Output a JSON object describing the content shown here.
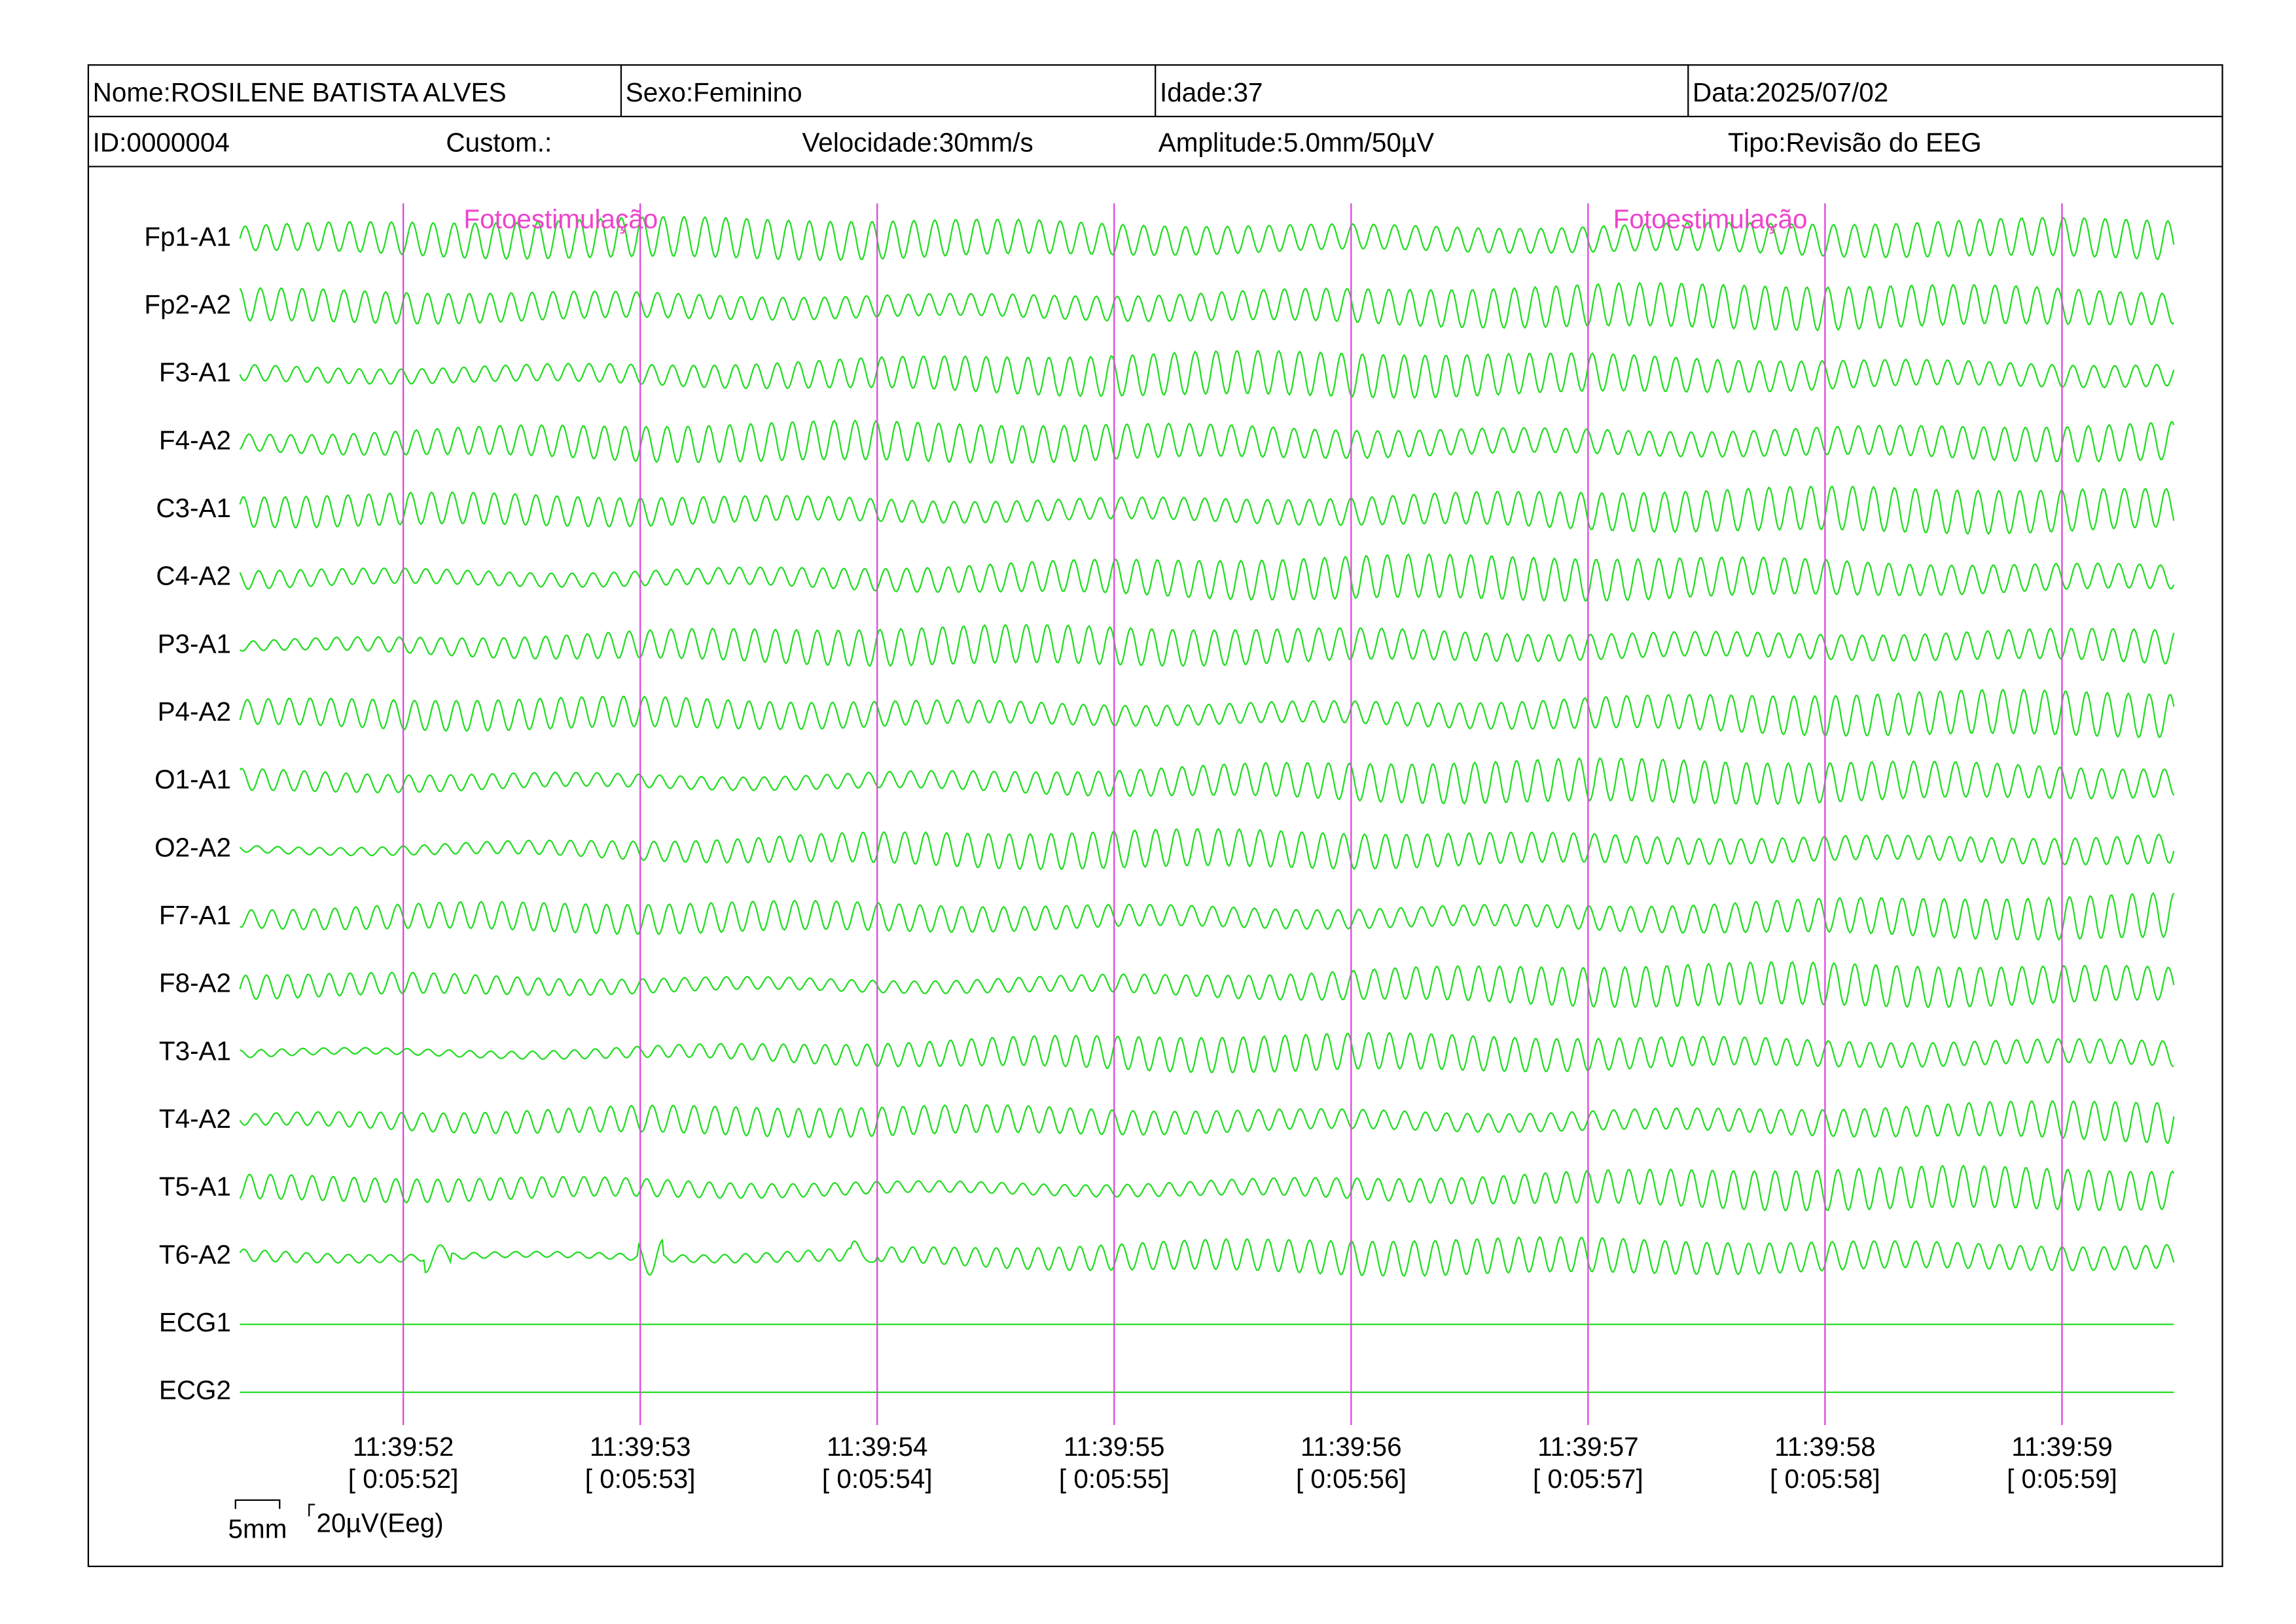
{
  "header": {
    "name": "Nome:ROSILENE BATISTA ALVES",
    "sex": "Sexo:Feminino",
    "age": "Idade:37",
    "date": "Data:2025/07/02",
    "id": "ID:0000004",
    "custom": "Custom.:",
    "speed": "Velocidade:30mm/s",
    "amplitude": "Amplitude:5.0mm/50µV",
    "type": "Tipo:Revisão do EEG"
  },
  "channels": [
    "Fp1-A1",
    "Fp2-A2",
    "F3-A1",
    "F4-A2",
    "C3-A1",
    "C4-A2",
    "P3-A1",
    "P4-A2",
    "O1-A1",
    "O2-A2",
    "F7-A1",
    "F8-A2",
    "T3-A1",
    "T4-A2",
    "T5-A1",
    "T6-A2",
    "ECG1",
    "ECG2"
  ],
  "time_marks": [
    {
      "time": "11:39:52",
      "elapsed": "[ 0:05:52]"
    },
    {
      "time": "11:39:53",
      "elapsed": "[ 0:05:53]"
    },
    {
      "time": "11:39:54",
      "elapsed": "[ 0:05:54]"
    },
    {
      "time": "11:39:55",
      "elapsed": "[ 0:05:55]"
    },
    {
      "time": "11:39:56",
      "elapsed": "[ 0:05:56]"
    },
    {
      "time": "11:39:57",
      "elapsed": "[ 0:05:57]"
    },
    {
      "time": "11:39:58",
      "elapsed": "[ 0:05:58]"
    },
    {
      "time": "11:39:59",
      "elapsed": "[ 0:05:59]"
    }
  ],
  "annotations": [
    "Fotoestimulação",
    "Fotoestimulação"
  ],
  "scale": {
    "time": "5mm",
    "amplitude": "20µV(Eeg)"
  }
}
